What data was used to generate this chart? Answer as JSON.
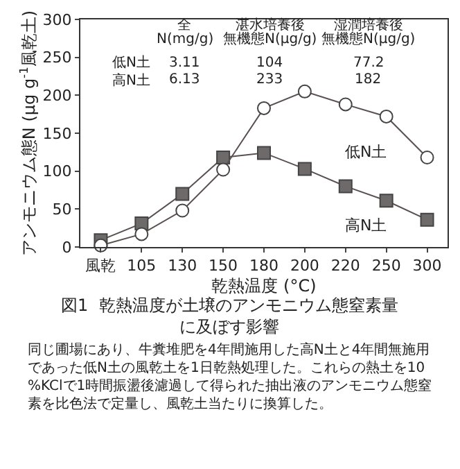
{
  "chart_data": {
    "type": "line",
    "title": "図1  乾熱温度が土壌のアンモニウム態窒素量に及ぼす影響",
    "xlabel": "乾熱温度 (°C)",
    "ylabel": "アンモニウム態N (μg g$^{-1}$風乾土)",
    "categories": [
      "風乾",
      "105",
      "130",
      "150",
      "180",
      "200",
      "220",
      "250",
      "300"
    ],
    "series": [
      {
        "name": "低N土",
        "color": "#ffffff",
        "marker": "circle",
        "values": [
          2,
          17,
          48,
          102,
          183,
          205,
          188,
          172,
          118
        ]
      },
      {
        "name": "高N土",
        "color": "#6e6a6a",
        "marker": "square",
        "values": [
          9,
          31,
          70,
          118,
          124,
          103,
          80,
          61,
          36
        ]
      }
    ],
    "ylim": [
      0,
      300
    ],
    "yticks": [
      0,
      50,
      100,
      150,
      200,
      250,
      300
    ],
    "legend": false,
    "line_style": "solid",
    "annotations": [
      "全",
      "N(mg/g)",
      "湛水培養後",
      "無機態N(μg/g)",
      "湿潤培養後",
      "無機態N(μg/g)",
      "低N土",
      "3.11",
      "104",
      "77.2",
      "高N土",
      "6.13",
      "233",
      "182",
      "同じ圃場にあり、牛糞堆肥を4年間施用した高N土と4年間無施用であった低N土の風乾土を1日乾熱処理した。これらの熱土を10%KClで1時間振盪後濾過して得られた抽出液のアンモニウム態窒素を比色法で定量し、風乾土当たりに換算した。"
    ]
  }
}
